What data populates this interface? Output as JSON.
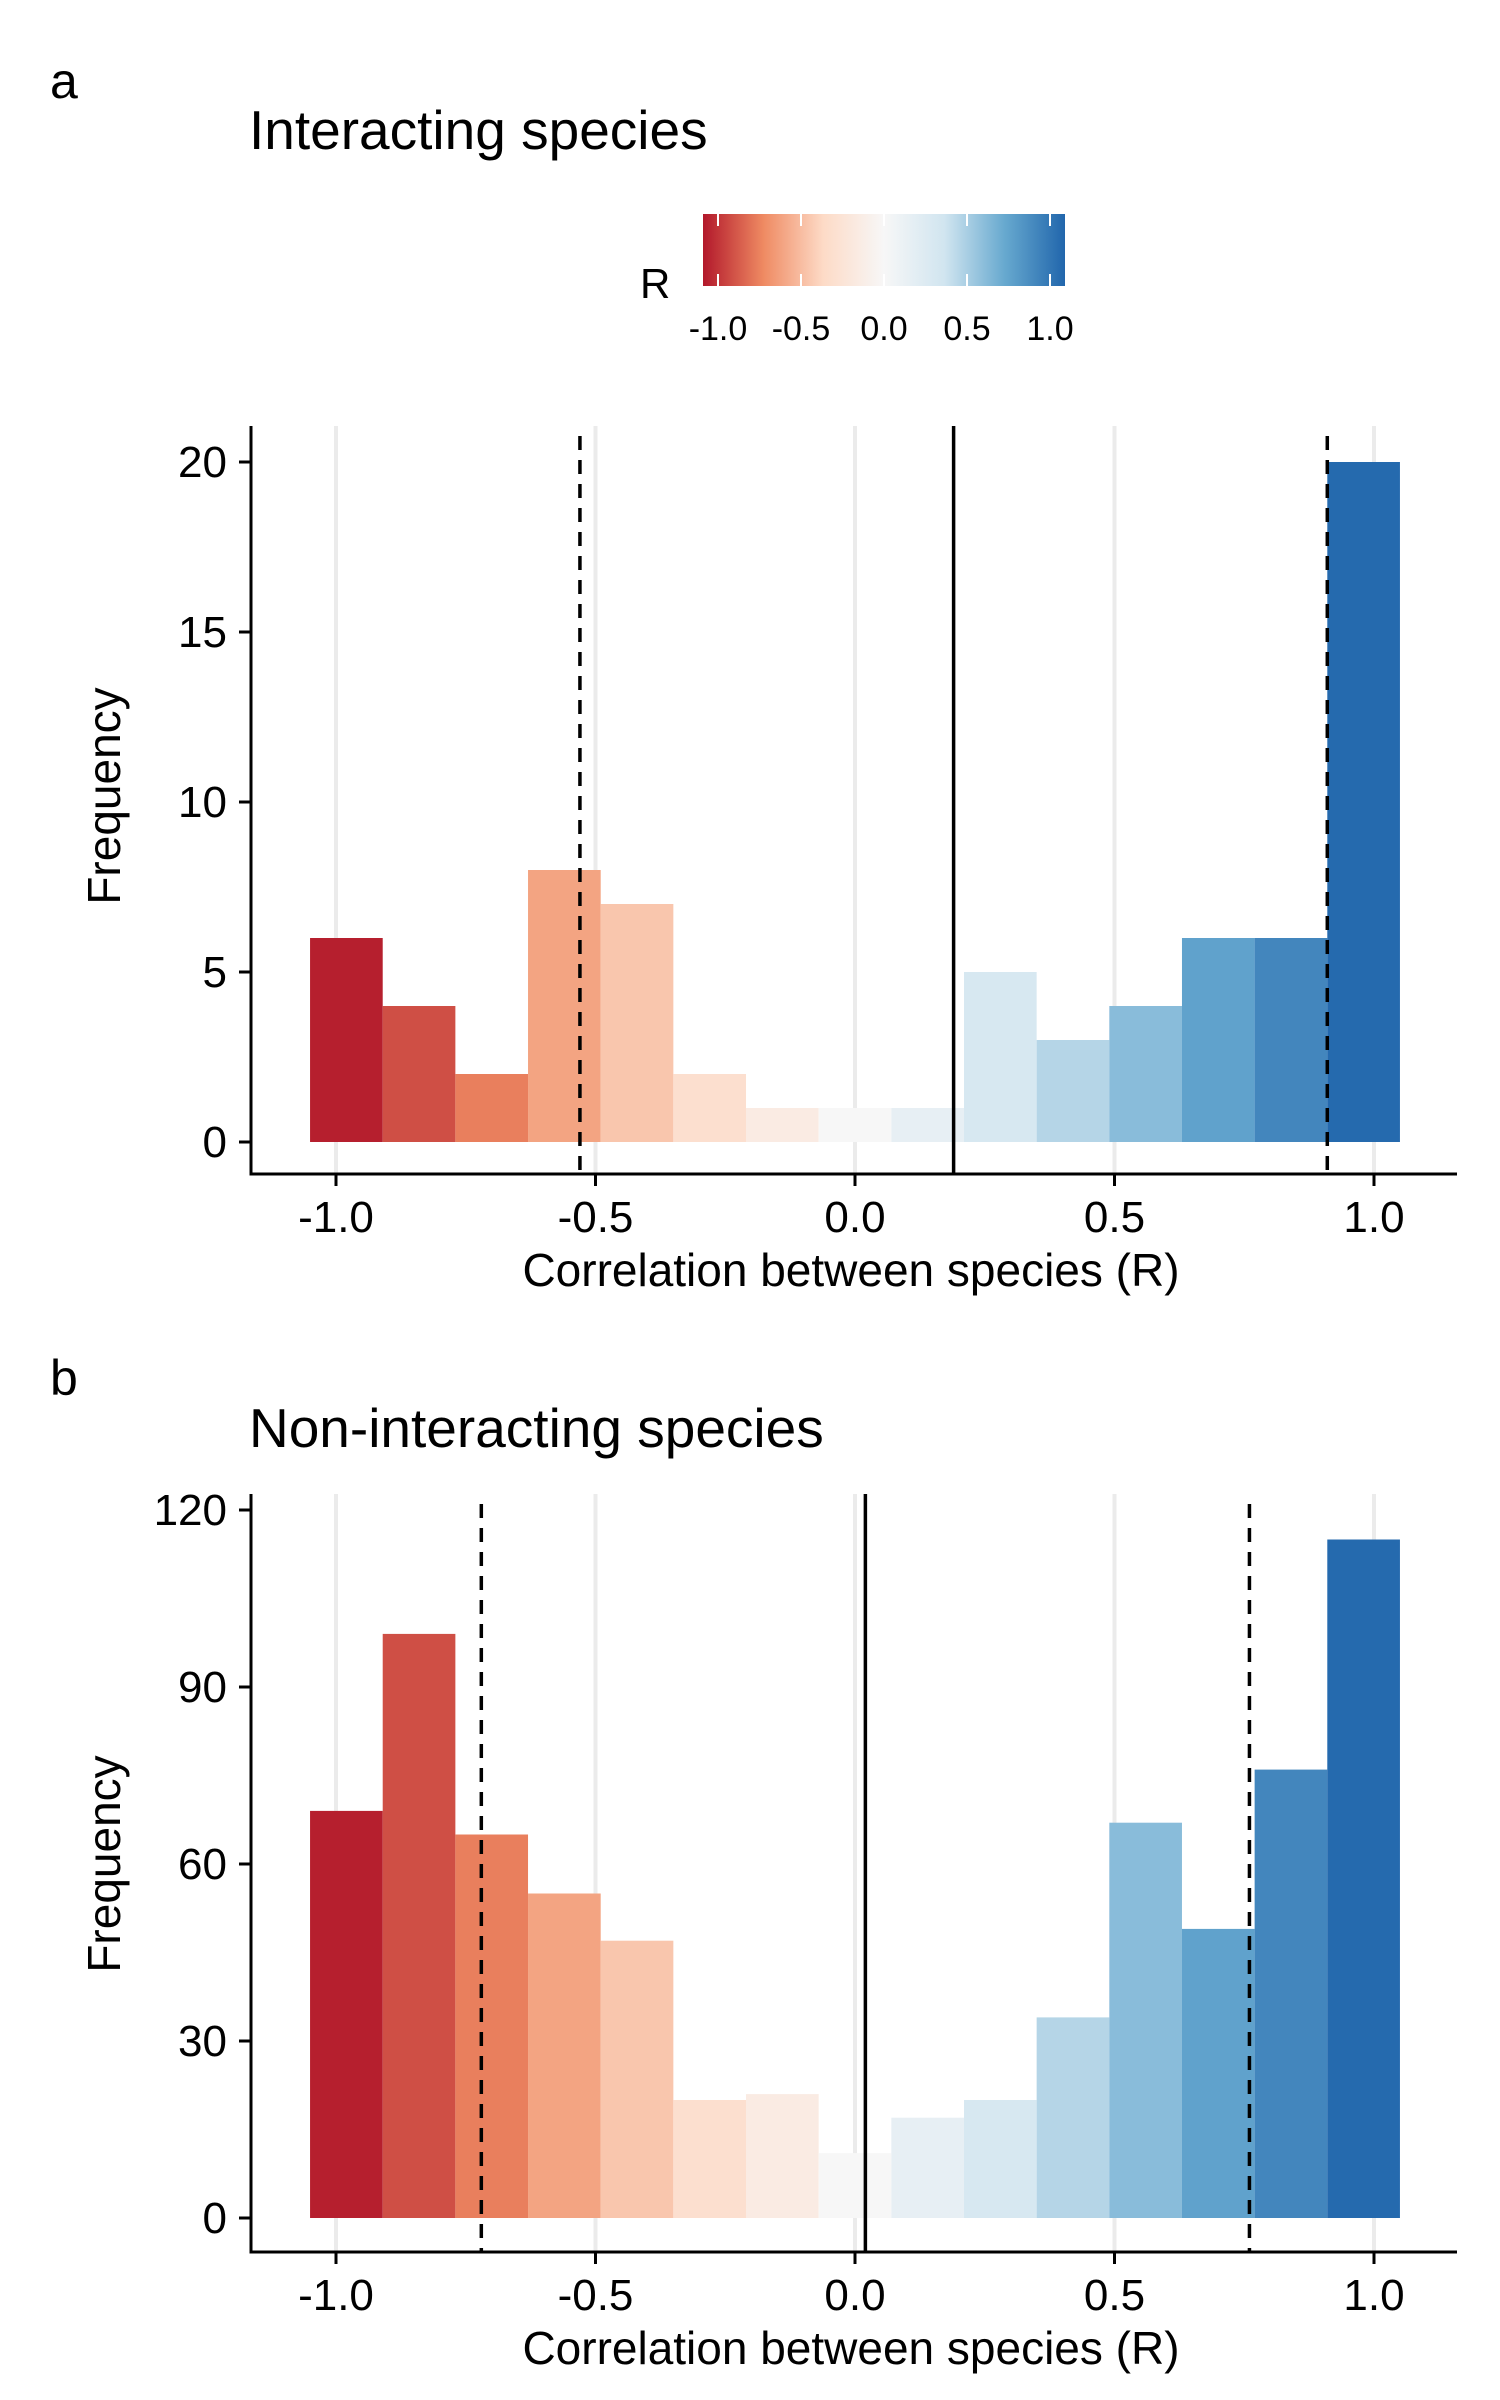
{
  "legend": {
    "title": "R",
    "ticks": [
      "-1.0",
      "-0.5",
      "0.0",
      "0.5",
      "1.0"
    ],
    "colors": [
      "#b2182b",
      "#ef8a62",
      "#fddbc7",
      "#f7f7f7",
      "#d1e5f0",
      "#67a9cf",
      "#2166ac"
    ]
  },
  "chart_data": [
    {
      "panel": "a",
      "type": "bar",
      "title": "Interacting species",
      "xlabel": "Correlation between species (R)",
      "ylabel": "Frequency",
      "x_ticks": [
        "-1.0",
        "-0.5",
        "0.0",
        "0.5",
        "1.0"
      ],
      "y_ticks": [
        "0",
        "5",
        "10",
        "15",
        "20"
      ],
      "xlim": [
        -1.15,
        1.15
      ],
      "ylim": [
        -1,
        21
      ],
      "grid": "vertical",
      "bin_width": 0.14,
      "bins": [
        {
          "x": -0.98,
          "count": 6
        },
        {
          "x": -0.84,
          "count": 4
        },
        {
          "x": -0.7,
          "count": 2
        },
        {
          "x": -0.56,
          "count": 8
        },
        {
          "x": -0.42,
          "count": 7
        },
        {
          "x": -0.28,
          "count": 2
        },
        {
          "x": -0.14,
          "count": 1
        },
        {
          "x": 0.0,
          "count": 1
        },
        {
          "x": 0.14,
          "count": 1
        },
        {
          "x": 0.28,
          "count": 5
        },
        {
          "x": 0.42,
          "count": 3
        },
        {
          "x": 0.56,
          "count": 4
        },
        {
          "x": 0.7,
          "count": 6
        },
        {
          "x": 0.84,
          "count": 6
        },
        {
          "x": 0.98,
          "count": 20
        }
      ],
      "vline_solid": 0.19,
      "vlines_dashed": [
        -0.53,
        0.91
      ]
    },
    {
      "panel": "b",
      "type": "bar",
      "title": "Non-interacting species",
      "xlabel": "Correlation between species (R)",
      "ylabel": "Frequency",
      "x_ticks": [
        "-1.0",
        "-0.5",
        "0.0",
        "0.5",
        "1.0"
      ],
      "y_ticks": [
        "0",
        "30",
        "60",
        "90",
        "120"
      ],
      "xlim": [
        -1.15,
        1.15
      ],
      "ylim": [
        -5,
        120
      ],
      "grid": "vertical",
      "bin_width": 0.14,
      "bins": [
        {
          "x": -0.98,
          "count": 69
        },
        {
          "x": -0.84,
          "count": 99
        },
        {
          "x": -0.7,
          "count": 65
        },
        {
          "x": -0.56,
          "count": 55
        },
        {
          "x": -0.42,
          "count": 47
        },
        {
          "x": -0.28,
          "count": 20
        },
        {
          "x": -0.14,
          "count": 21
        },
        {
          "x": 0.0,
          "count": 11
        },
        {
          "x": 0.14,
          "count": 17
        },
        {
          "x": 0.28,
          "count": 20
        },
        {
          "x": 0.42,
          "count": 34
        },
        {
          "x": 0.56,
          "count": 67
        },
        {
          "x": 0.7,
          "count": 49
        },
        {
          "x": 0.84,
          "count": 76
        },
        {
          "x": 0.98,
          "count": 115
        }
      ],
      "vline_solid": 0.02,
      "vlines_dashed": [
        -0.72,
        0.76
      ]
    }
  ]
}
